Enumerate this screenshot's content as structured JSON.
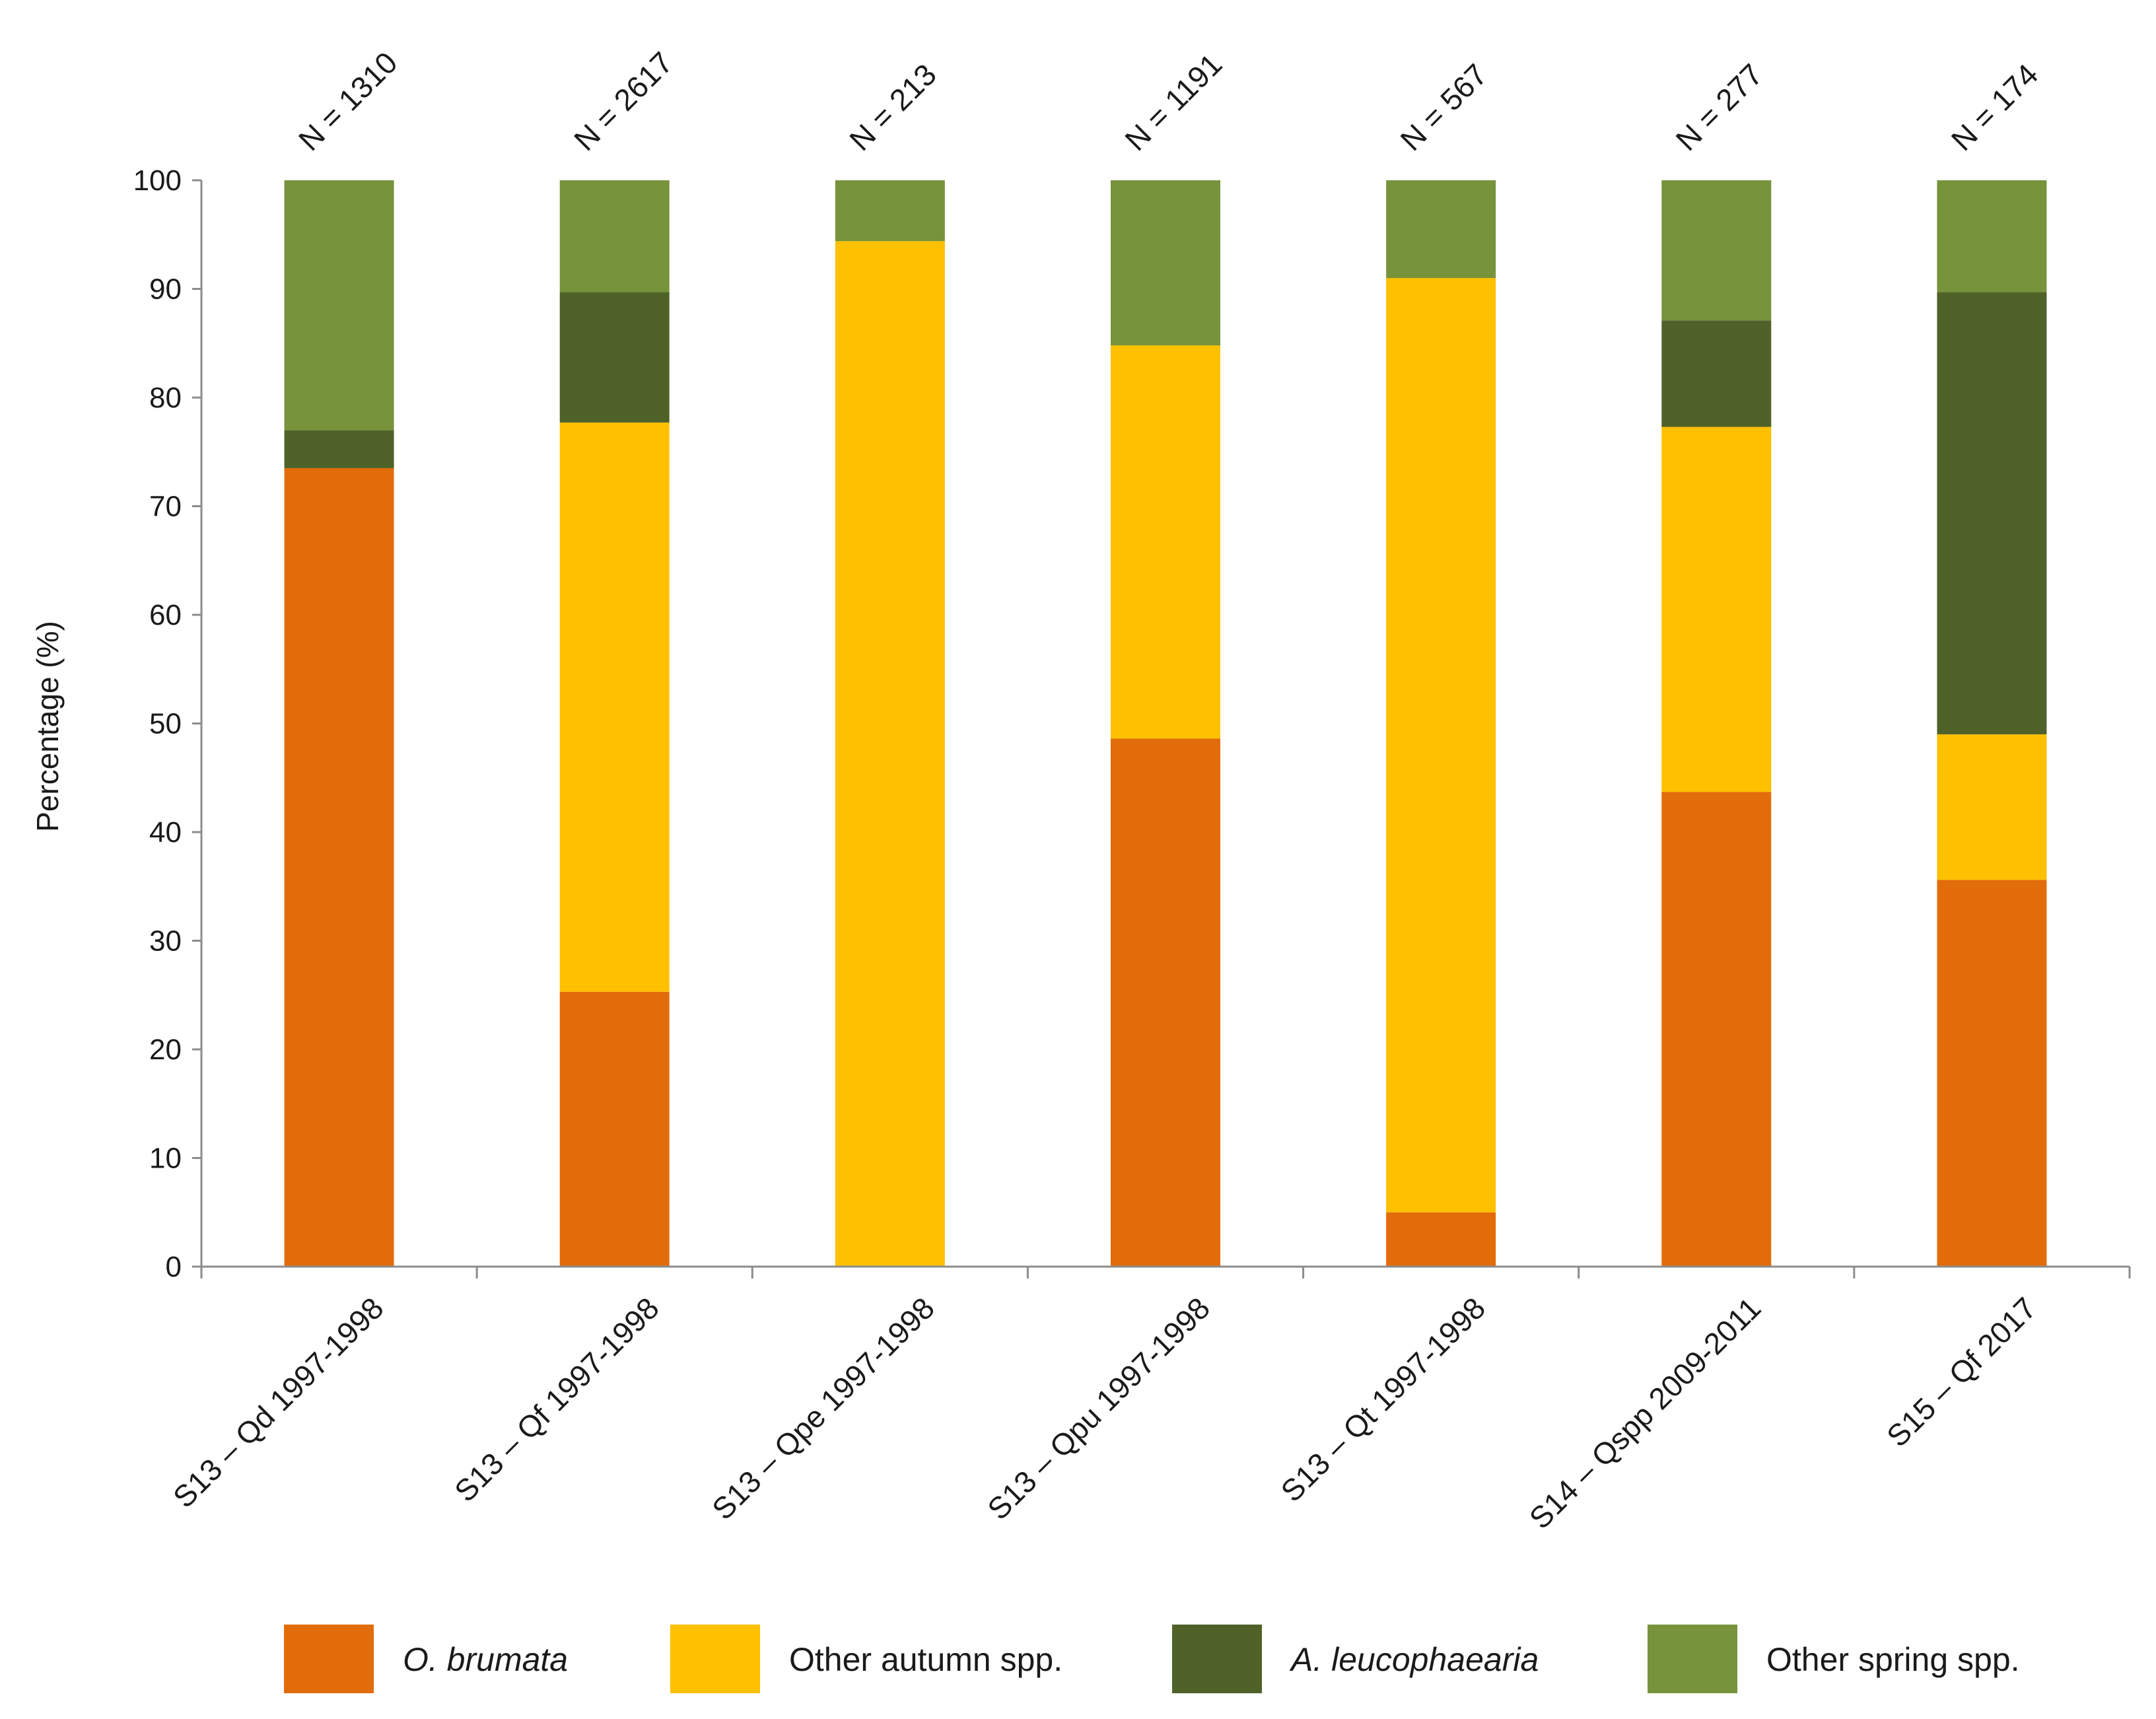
{
  "chart_data": {
    "type": "bar",
    "stacked": true,
    "ylabel": "Percentage (%)",
    "ylim": [
      0,
      100
    ],
    "yticks": [
      0,
      10,
      20,
      30,
      40,
      50,
      60,
      70,
      80,
      90,
      100
    ],
    "categories": [
      "S13 – Qd 1997-1998",
      "S13 – Qf 1997-1998",
      "S13 – Qpe 1997-1998",
      "S13 – Qpu 1997-1998",
      "S13 – Qt 1997-1998",
      "S14 – Qspp 2009-2011",
      "S15 – Qf 2017"
    ],
    "n_labels": [
      "N = 1310",
      "N = 2617",
      "N = 213",
      "N = 1191",
      "N = 567",
      "N = 277",
      "N = 174"
    ],
    "series": [
      {
        "name": "O. brumata",
        "italic": true,
        "color": "#E36C0A",
        "values": [
          73.5,
          25.3,
          0,
          48.6,
          5.0,
          43.7,
          35.6
        ]
      },
      {
        "name": "Other autumn spp.",
        "italic": false,
        "color": "#FFC000",
        "values": [
          0,
          52.4,
          94.4,
          36.2,
          86.0,
          33.6,
          13.4
        ]
      },
      {
        "name": "A. leucophaearia",
        "italic": true,
        "color": "#4F6228",
        "values": [
          3.5,
          12.0,
          0,
          0,
          0,
          9.8,
          40.7
        ]
      },
      {
        "name": "Other spring spp.",
        "italic": false,
        "color": "#77933C",
        "values": [
          23.0,
          10.3,
          5.6,
          15.2,
          9.0,
          12.9,
          10.3
        ]
      }
    ]
  }
}
